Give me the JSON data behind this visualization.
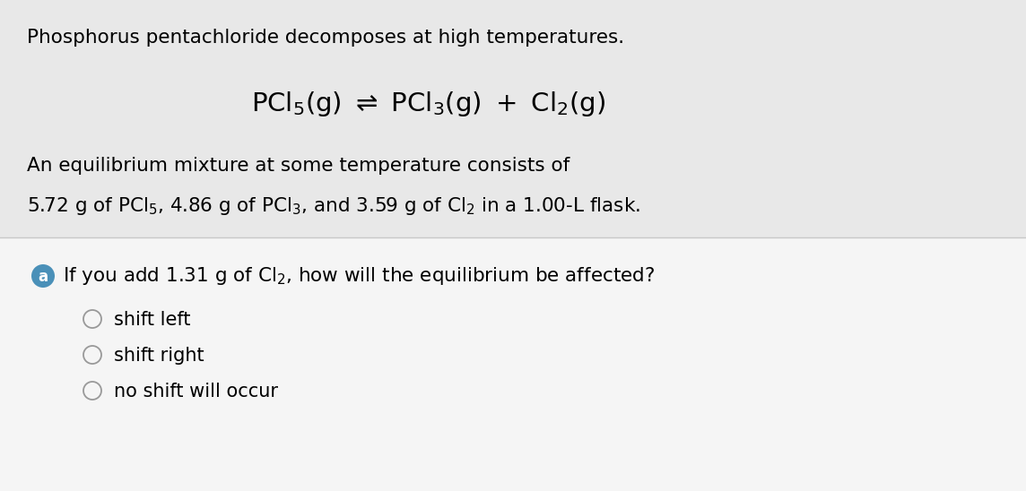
{
  "bg_color_top": "#e8e8e8",
  "bg_color_bottom": "#f5f5f5",
  "white_bg": "#ffffff",
  "separator_color": "#c8c8c8",
  "badge_color": "#4a90b8",
  "badge_text": "a",
  "title_text": "Phosphorus pentachloride decomposes at high temperatures.",
  "equilibrium_text": "An equilibrium mixture at some temperature consists of",
  "options": [
    "shift left",
    "shift right",
    "no shift will occur"
  ],
  "font_size_title": 15.5,
  "font_size_eq": 21,
  "font_size_body": 15.5,
  "font_size_options": 15
}
